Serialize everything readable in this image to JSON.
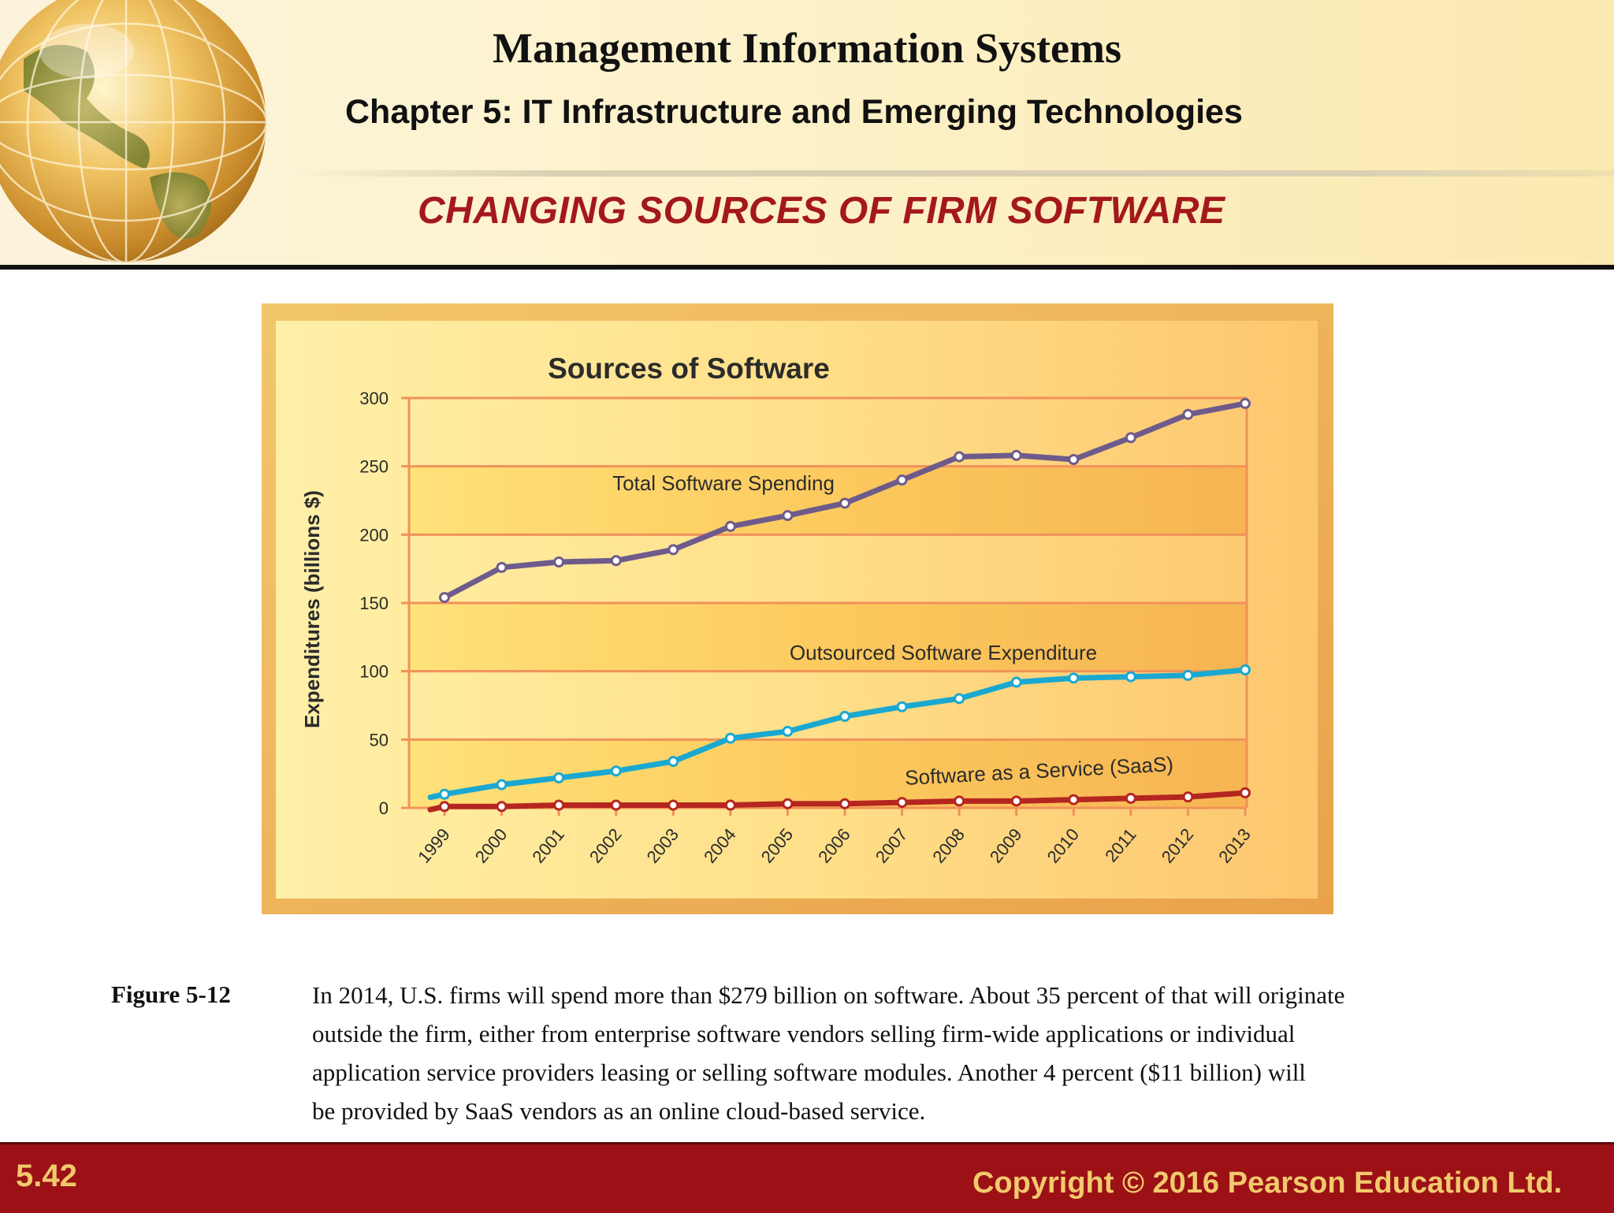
{
  "header": {
    "title": "Management Information Systems",
    "chapter": "Chapter 5: IT Infrastructure and Emerging Technologies",
    "section": "CHANGING SOURCES OF FIRM SOFTWARE"
  },
  "chart_data": {
    "type": "line",
    "title": "Sources of Software",
    "ylabel": "Expenditures (billions $)",
    "xlabel": "",
    "ylim": [
      0,
      300
    ],
    "yticks": [
      0,
      50,
      100,
      150,
      200,
      250,
      300
    ],
    "categories": [
      "1999",
      "2000",
      "2001",
      "2002",
      "2003",
      "2004",
      "2005",
      "2006",
      "2007",
      "2008",
      "2009",
      "2010",
      "2011",
      "2012",
      "2013"
    ],
    "grid": true,
    "series": [
      {
        "name": "Total Software Spending",
        "color": "#6e5b8c",
        "values": [
          154,
          176,
          180,
          181,
          189,
          206,
          214,
          223,
          240,
          257,
          258,
          255,
          271,
          288,
          296
        ]
      },
      {
        "name": "Outsourced Software Expenditure",
        "color": "#1aa8d1",
        "values": [
          10,
          17,
          22,
          27,
          34,
          51,
          56,
          67,
          74,
          80,
          92,
          95,
          96,
          97,
          101
        ]
      },
      {
        "name": "Software as a Service (SaaS)",
        "color": "#b52620",
        "values": [
          1,
          1,
          2,
          2,
          2,
          2,
          3,
          3,
          4,
          5,
          5,
          6,
          7,
          8,
          11
        ]
      }
    ]
  },
  "caption": {
    "label": "Figure 5-12",
    "lines": [
      "In 2014, U.S. firms will spend more than $279 billion on software. About 35 percent of that will originate",
      "outside the firm, either from enterprise software vendors selling firm-wide applications or individual",
      "application service providers leasing or selling software modules. Another 4 percent ($11 billion) will",
      "be provided by SaaS vendors as an online cloud-based service."
    ]
  },
  "footer": {
    "slide_number": "5.42",
    "copyright": "Copyright © 2016 Pearson Education Ltd."
  }
}
